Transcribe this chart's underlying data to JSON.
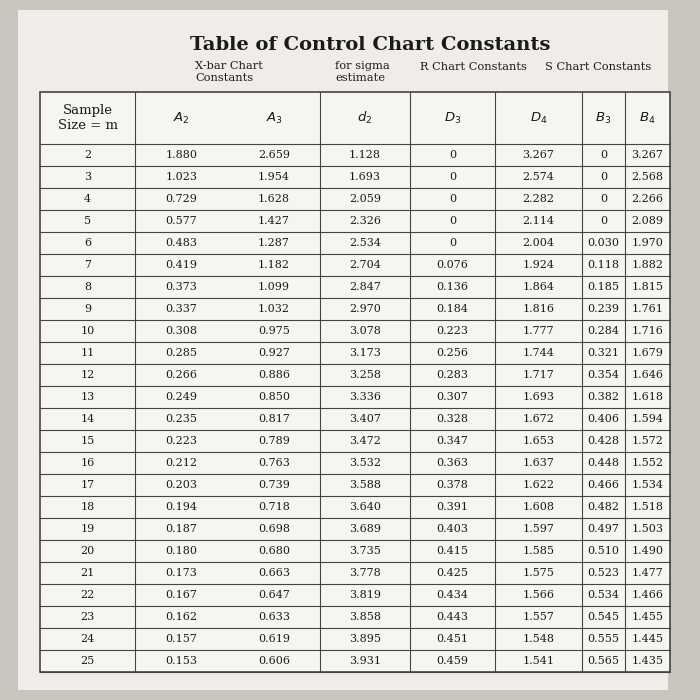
{
  "title": "Table of Control Chart Constants",
  "subtitle_xbar": "X-bar Chart\nConstants",
  "subtitle_sigma": "for sigma\nestimate",
  "subtitle_r": "R Chart Constants",
  "subtitle_s": "S Chart Constants",
  "col_labels": [
    "Sample\nSize = m",
    "$A_2$",
    "$A_3$",
    "$d_2$",
    "$D_3$",
    "$D_4$",
    "$B_3$",
    "$B_4$"
  ],
  "rows": [
    [
      2,
      1.88,
      2.659,
      1.128,
      0,
      3.267,
      0,
      3.267
    ],
    [
      3,
      1.023,
      1.954,
      1.693,
      0,
      2.574,
      0,
      2.568
    ],
    [
      4,
      0.729,
      1.628,
      2.059,
      0,
      2.282,
      0,
      2.266
    ],
    [
      5,
      0.577,
      1.427,
      2.326,
      0,
      2.114,
      0,
      2.089
    ],
    [
      6,
      0.483,
      1.287,
      2.534,
      0,
      2.004,
      0.03,
      1.97
    ],
    [
      7,
      0.419,
      1.182,
      2.704,
      0.076,
      1.924,
      0.118,
      1.882
    ],
    [
      8,
      0.373,
      1.099,
      2.847,
      0.136,
      1.864,
      0.185,
      1.815
    ],
    [
      9,
      0.337,
      1.032,
      2.97,
      0.184,
      1.816,
      0.239,
      1.761
    ],
    [
      10,
      0.308,
      0.975,
      3.078,
      0.223,
      1.777,
      0.284,
      1.716
    ],
    [
      11,
      0.285,
      0.927,
      3.173,
      0.256,
      1.744,
      0.321,
      1.679
    ],
    [
      12,
      0.266,
      0.886,
      3.258,
      0.283,
      1.717,
      0.354,
      1.646
    ],
    [
      13,
      0.249,
      0.85,
      3.336,
      0.307,
      1.693,
      0.382,
      1.618
    ],
    [
      14,
      0.235,
      0.817,
      3.407,
      0.328,
      1.672,
      0.406,
      1.594
    ],
    [
      15,
      0.223,
      0.789,
      3.472,
      0.347,
      1.653,
      0.428,
      1.572
    ],
    [
      16,
      0.212,
      0.763,
      3.532,
      0.363,
      1.637,
      0.448,
      1.552
    ],
    [
      17,
      0.203,
      0.739,
      3.588,
      0.378,
      1.622,
      0.466,
      1.534
    ],
    [
      18,
      0.194,
      0.718,
      3.64,
      0.391,
      1.608,
      0.482,
      1.518
    ],
    [
      19,
      0.187,
      0.698,
      3.689,
      0.403,
      1.597,
      0.497,
      1.503
    ],
    [
      20,
      0.18,
      0.68,
      3.735,
      0.415,
      1.585,
      0.51,
      1.49
    ],
    [
      21,
      0.173,
      0.663,
      3.778,
      0.425,
      1.575,
      0.523,
      1.477
    ],
    [
      22,
      0.167,
      0.647,
      3.819,
      0.434,
      1.566,
      0.534,
      1.466
    ],
    [
      23,
      0.162,
      0.633,
      3.858,
      0.443,
      1.557,
      0.545,
      1.455
    ],
    [
      24,
      0.157,
      0.619,
      3.895,
      0.451,
      1.548,
      0.555,
      1.445
    ],
    [
      25,
      0.153,
      0.606,
      3.931,
      0.459,
      1.541,
      0.565,
      1.435
    ]
  ],
  "page_bg": "#c8c4be",
  "paper_bg": "#f0ede8",
  "table_bg": "#f7f5f2",
  "line_color": "#444444",
  "text_color": "#1a1a1a",
  "title_fontsize": 14,
  "subtitle_fontsize": 8.2,
  "header_fontsize": 9.5,
  "cell_fontsize": 8.0
}
